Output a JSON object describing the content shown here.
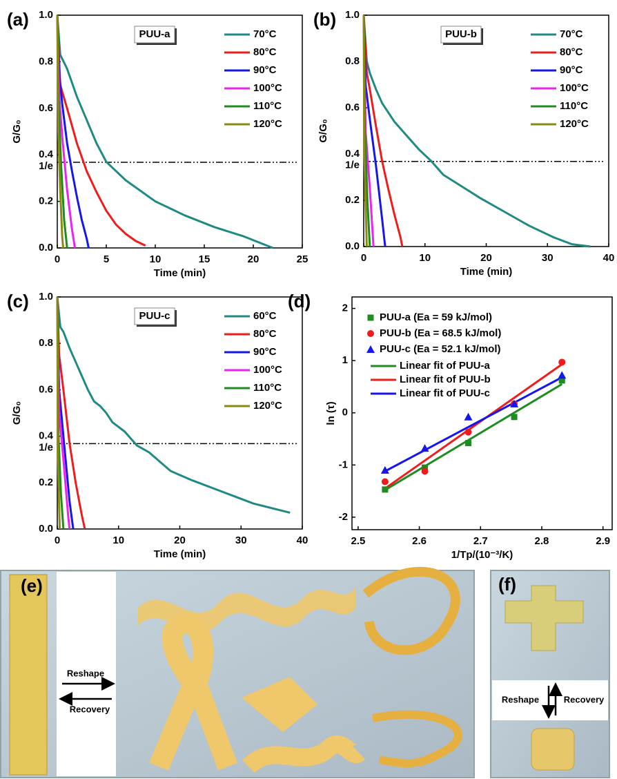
{
  "chart_data": [
    {
      "type": "line",
      "panel_label": "(a)",
      "annotation": "PUU-a",
      "xlabel": "Time (min)",
      "ylabel": "G/G₀",
      "xlim": [
        0,
        25
      ],
      "xticks": [
        0,
        5,
        10,
        15,
        20,
        25
      ],
      "ylim": [
        0,
        1
      ],
      "yticks": [
        {
          "value": 0,
          "label": "0.0"
        },
        0.2,
        0.4,
        0.6,
        0.8,
        {
          "value": 1,
          "label": "1.0"
        }
      ],
      "hline": {
        "value": 0.368,
        "label": "1/e"
      },
      "legend": "upper right",
      "series": [
        {
          "name": "70°C",
          "color": "#1f8a84",
          "x": [
            0,
            0.3,
            1,
            2,
            3,
            4,
            5,
            7,
            10,
            13,
            16,
            19,
            22
          ],
          "values": [
            1,
            0.83,
            0.77,
            0.65,
            0.55,
            0.45,
            0.37,
            0.29,
            0.2,
            0.14,
            0.09,
            0.05,
            0
          ]
        },
        {
          "name": "80°C",
          "color": "#ee1c1c",
          "x": [
            0,
            0.3,
            1,
            2,
            3,
            4,
            5,
            6,
            7,
            8,
            9
          ],
          "values": [
            1,
            0.7,
            0.6,
            0.45,
            0.33,
            0.24,
            0.16,
            0.1,
            0.06,
            0.03,
            0.01
          ]
        },
        {
          "name": "90°C",
          "color": "#1515ee",
          "x": [
            0,
            0.2,
            0.5,
            1,
            1.5,
            2,
            2.5,
            3,
            3.2
          ],
          "values": [
            1,
            0.75,
            0.62,
            0.45,
            0.33,
            0.22,
            0.12,
            0.04,
            0
          ]
        },
        {
          "name": "100°C",
          "color": "#ee22ee",
          "x": [
            0,
            0.2,
            0.5,
            1,
            1.5,
            1.8
          ],
          "values": [
            1,
            0.65,
            0.48,
            0.25,
            0.08,
            0
          ]
        },
        {
          "name": "110°C",
          "color": "#1e8c1e",
          "x": [
            0,
            0.15,
            0.4,
            0.7,
            1
          ],
          "values": [
            1,
            0.6,
            0.35,
            0.12,
            0
          ]
        },
        {
          "name": "120°C",
          "color": "#8a8a10",
          "x": [
            0,
            0.1,
            0.3,
            0.5,
            0.6
          ],
          "values": [
            1,
            0.5,
            0.25,
            0.05,
            0
          ]
        }
      ]
    },
    {
      "type": "line",
      "panel_label": "(b)",
      "annotation": "PUU-b",
      "xlabel": "Time (min)",
      "ylabel": "G/G₀",
      "xlim": [
        0,
        40
      ],
      "xticks": [
        0,
        10,
        20,
        30,
        40
      ],
      "ylim": [
        0,
        1
      ],
      "yticks": [
        {
          "value": 0,
          "label": "0.0"
        },
        0.2,
        0.4,
        0.6,
        0.8,
        {
          "value": 1,
          "label": "1.0"
        }
      ],
      "hline": {
        "value": 0.368,
        "label": "1/e"
      },
      "legend": "upper right",
      "series": [
        {
          "name": "70°C",
          "color": "#1f8a84",
          "x": [
            0,
            0.5,
            1,
            2,
            3,
            4,
            5,
            7,
            9,
            11,
            13,
            16,
            19,
            23,
            27,
            31,
            34,
            37
          ],
          "values": [
            1,
            0.8,
            0.75,
            0.68,
            0.62,
            0.58,
            0.54,
            0.48,
            0.42,
            0.37,
            0.31,
            0.26,
            0.21,
            0.15,
            0.09,
            0.04,
            0.01,
            0
          ]
        },
        {
          "name": "80°C",
          "color": "#ee1c1c",
          "x": [
            0,
            0.5,
            1,
            2,
            3,
            4,
            5,
            6,
            6.3
          ],
          "values": [
            1,
            0.75,
            0.68,
            0.52,
            0.37,
            0.25,
            0.14,
            0.04,
            0
          ]
        },
        {
          "name": "90°C",
          "color": "#1515ee",
          "x": [
            0,
            0.3,
            1,
            2,
            3,
            3.5
          ],
          "values": [
            1,
            0.7,
            0.55,
            0.35,
            0.12,
            0
          ]
        },
        {
          "name": "100°C",
          "color": "#ee22ee",
          "x": [
            0,
            0.3,
            1,
            1.6
          ],
          "values": [
            1,
            0.5,
            0.25,
            0
          ]
        },
        {
          "name": "110°C",
          "color": "#1e8c1e",
          "x": [
            0,
            0.2,
            0.6,
            1
          ],
          "values": [
            1,
            0.5,
            0.2,
            0
          ]
        },
        {
          "name": "120°C",
          "color": "#8a8a10",
          "x": [
            0,
            0.1,
            0.5
          ],
          "values": [
            1,
            0.4,
            0
          ]
        }
      ]
    },
    {
      "type": "line",
      "panel_label": "(c)",
      "annotation": "PUU-c",
      "xlabel": "Time (min)",
      "ylabel": "G/G₀",
      "xlim": [
        0,
        40
      ],
      "xticks": [
        0,
        10,
        20,
        30,
        40
      ],
      "ylim": [
        0,
        1
      ],
      "yticks": [
        {
          "value": 0,
          "label": "0.0"
        },
        0.2,
        0.4,
        0.6,
        0.8,
        {
          "value": 1,
          "label": "1.0"
        }
      ],
      "hline": {
        "value": 0.368,
        "label": "1/e"
      },
      "legend": "upper right",
      "series": [
        {
          "name": "60°C",
          "color": "#1f8a84",
          "x": [
            0,
            0.5,
            1,
            2,
            3,
            4,
            5,
            6,
            7,
            8,
            9,
            11,
            13,
            15,
            18.5,
            22,
            26,
            30,
            32,
            38
          ],
          "values": [
            1,
            0.87,
            0.85,
            0.78,
            0.72,
            0.66,
            0.6,
            0.55,
            0.53,
            0.5,
            0.46,
            0.42,
            0.36,
            0.33,
            0.25,
            0.21,
            0.17,
            0.13,
            0.11,
            0.07
          ]
        },
        {
          "name": "80°C",
          "color": "#ee1c1c",
          "x": [
            0,
            0.3,
            1,
            2,
            3,
            4,
            4.5
          ],
          "values": [
            1,
            0.75,
            0.6,
            0.37,
            0.2,
            0.06,
            0
          ]
        },
        {
          "name": "90°C",
          "color": "#1515ee",
          "x": [
            0,
            0.3,
            1,
            2,
            2.6
          ],
          "values": [
            1,
            0.6,
            0.4,
            0.12,
            0
          ]
        },
        {
          "name": "100°C",
          "color": "#ee22ee",
          "x": [
            0,
            0.3,
            1,
            1.8,
            2
          ],
          "values": [
            1,
            0.5,
            0.3,
            0.05,
            0
          ]
        },
        {
          "name": "110°C",
          "color": "#1e8c1e",
          "x": [
            0,
            0.2,
            0.6,
            1
          ],
          "values": [
            1,
            0.4,
            0.15,
            0
          ]
        },
        {
          "name": "120°C",
          "color": "#8a8a10",
          "x": [
            0,
            0.1,
            0.4
          ],
          "values": [
            1,
            0.3,
            0
          ]
        }
      ]
    },
    {
      "type": "scatter",
      "panel_label": "(d)",
      "xlabel": "1/Tp/(10⁻³/K)",
      "ylabel": "ln (τ)",
      "xlim": [
        2.49,
        2.915
      ],
      "xticks": [
        2.5,
        2.6,
        2.7,
        2.8,
        2.9
      ],
      "ylim": [
        -2.24,
        2.22
      ],
      "yticks": [
        -2,
        -1,
        0,
        1,
        2
      ],
      "legend": "upper left",
      "series": [
        {
          "name": "PUU-a (Ea = 59 kJ/mol)",
          "color": "#1e8c1e",
          "marker": "square",
          "x": [
            2.544,
            2.609,
            2.68,
            2.755,
            2.833
          ],
          "values": [
            -1.47,
            -1.05,
            -0.58,
            -0.08,
            0.62
          ]
        },
        {
          "name": "PUU-b (Ea = 68.5 kJ/mol)",
          "color": "#ee1c1c",
          "marker": "circle",
          "x": [
            2.544,
            2.609,
            2.68,
            2.755,
            2.833
          ],
          "values": [
            -1.32,
            -1.12,
            -0.37,
            0.17,
            0.97
          ]
        },
        {
          "name": "PUU-c (Ea = 52.1 kJ/mol)",
          "color": "#1515ee",
          "marker": "triangle",
          "x": [
            2.544,
            2.609,
            2.68,
            2.755,
            2.833
          ],
          "values": [
            -1.1,
            -0.68,
            -0.08,
            0.17,
            0.72
          ]
        }
      ],
      "fit_series": [
        {
          "name": "Linear fit of PUU-a",
          "color": "#1e8c1e",
          "x": [
            2.544,
            2.833
          ],
          "values": [
            -1.48,
            0.55
          ]
        },
        {
          "name": "Linear fit of PUU-b",
          "color": "#ee1c1c",
          "x": [
            2.544,
            2.833
          ],
          "values": [
            -1.45,
            0.93
          ]
        },
        {
          "name": "Linear fit of PUU-c",
          "color": "#1515ee",
          "x": [
            2.544,
            2.833
          ],
          "values": [
            -1.12,
            0.68
          ]
        }
      ]
    }
  ],
  "photo_panels": [
    {
      "label": "(e)",
      "arrows": [
        "Reshape",
        "Recovery"
      ]
    },
    {
      "label": "(f)",
      "arrows": [
        "Reshape",
        "Recovery"
      ]
    }
  ]
}
